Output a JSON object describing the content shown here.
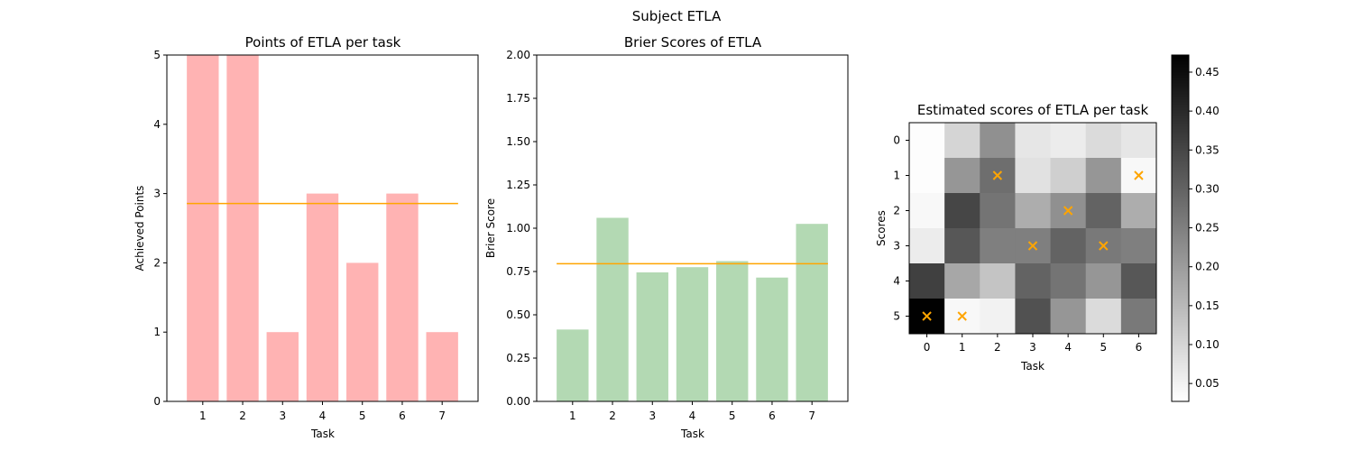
{
  "suptitle": "Subject ETLA",
  "chart_data": [
    {
      "type": "bar",
      "title": "Points of ETLA per task",
      "xlabel": "Task",
      "ylabel": "Achieved Points",
      "categories": [
        "1",
        "2",
        "3",
        "4",
        "5",
        "6",
        "7"
      ],
      "values": [
        5,
        5,
        1,
        3,
        2,
        3,
        1
      ],
      "mean_line": 2.857,
      "ylim": [
        0,
        5
      ],
      "yticks": [
        "0",
        "1",
        "2",
        "3",
        "4",
        "5"
      ],
      "bar_color": "#ffb3b3",
      "line_color": "#ffa500"
    },
    {
      "type": "bar",
      "title": "Brier Scores of ETLA",
      "xlabel": "Task",
      "ylabel": "Brier Score",
      "categories": [
        "1",
        "2",
        "3",
        "4",
        "5",
        "6",
        "7"
      ],
      "values": [
        0.415,
        1.06,
        0.745,
        0.775,
        0.81,
        0.715,
        1.025
      ],
      "mean_line": 0.795,
      "ylim": [
        0,
        2
      ],
      "yticks": [
        "0.00",
        "0.25",
        "0.50",
        "0.75",
        "1.00",
        "1.25",
        "1.50",
        "1.75",
        "2.00"
      ],
      "bar_color": "#b3d9b3",
      "line_color": "#ffa500"
    },
    {
      "type": "heatmap",
      "title": "Estimated scores of ETLA per task",
      "xlabel": "Task",
      "ylabel": "Scores",
      "xticks": [
        "0",
        "1",
        "2",
        "3",
        "4",
        "5",
        "6"
      ],
      "yticks": [
        "0",
        "1",
        "2",
        "3",
        "4",
        "5"
      ],
      "values": [
        [
          0.03,
          0.1,
          0.22,
          0.07,
          0.06,
          0.09,
          0.07
        ],
        [
          0.03,
          0.21,
          0.28,
          0.08,
          0.11,
          0.21,
          0.04
        ],
        [
          0.04,
          0.35,
          0.27,
          0.17,
          0.22,
          0.3,
          0.17
        ],
        [
          0.06,
          0.32,
          0.25,
          0.25,
          0.3,
          0.26,
          0.25
        ],
        [
          0.36,
          0.18,
          0.13,
          0.3,
          0.27,
          0.21,
          0.32
        ],
        [
          0.47,
          0.04,
          0.05,
          0.33,
          0.21,
          0.09,
          0.26
        ]
      ],
      "markers": [
        [
          0,
          5
        ],
        [
          1,
          5
        ],
        [
          2,
          1
        ],
        [
          3,
          3
        ],
        [
          4,
          2
        ],
        [
          5,
          3
        ],
        [
          6,
          1
        ]
      ],
      "marker_color": "#ffa500",
      "colormap": "gray_r",
      "colorbar": {
        "min": 0.027,
        "max": 0.472,
        "ticks": [
          0.05,
          0.1,
          0.15,
          0.2,
          0.25,
          0.3,
          0.35,
          0.4,
          0.45
        ],
        "tick_labels": [
          "0.05",
          "0.10",
          "0.15",
          "0.20",
          "0.25",
          "0.30",
          "0.35",
          "0.40",
          "0.45"
        ]
      }
    }
  ]
}
